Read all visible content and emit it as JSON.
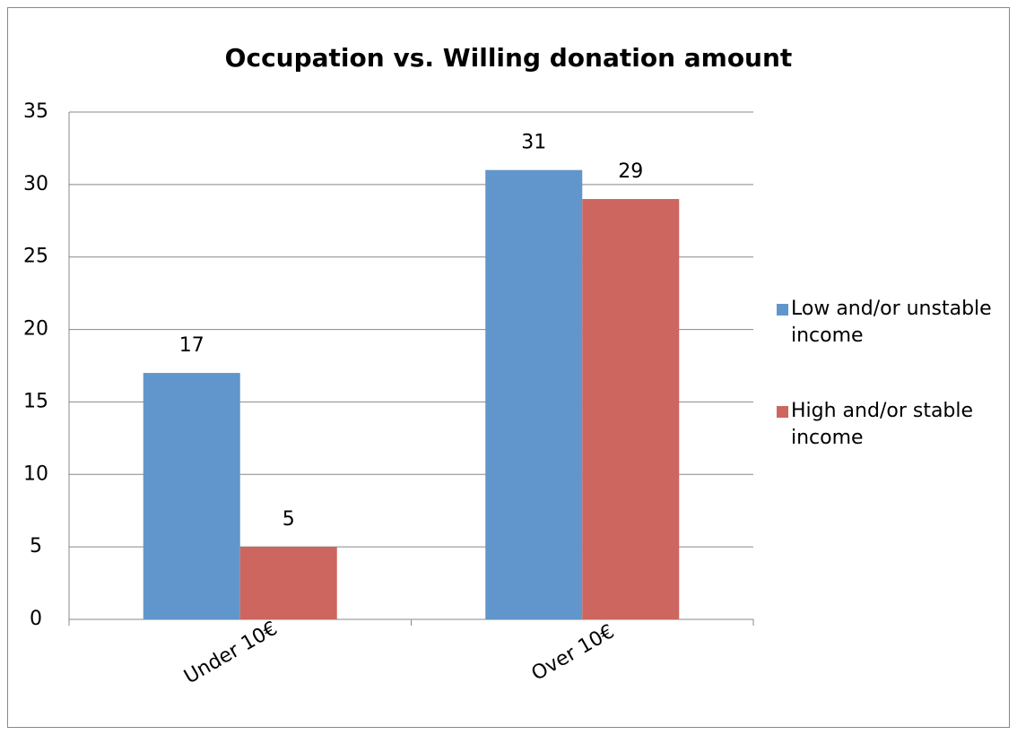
{
  "chart_data": {
    "type": "bar",
    "title": "Occupation vs. Willing donation amount",
    "categories": [
      "Under 10€",
      "Over 10€"
    ],
    "series": [
      {
        "name": "Low and/or unstable income",
        "color": "#6096cb",
        "values": [
          17,
          31
        ]
      },
      {
        "name": "High and/or stable income",
        "color": "#cd665f",
        "values": [
          5,
          29
        ]
      }
    ],
    "ylim": [
      0,
      35
    ],
    "yticks": [
      0,
      5,
      10,
      15,
      20,
      25,
      30,
      35
    ],
    "grid": true,
    "legend": "right"
  }
}
